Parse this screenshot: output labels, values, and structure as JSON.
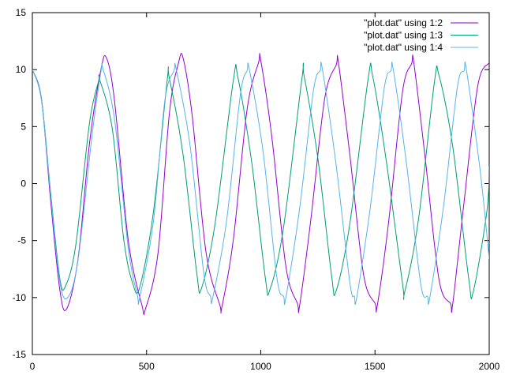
{
  "chart_data": {
    "type": "line",
    "title": "",
    "xlabel": "",
    "ylabel": "",
    "xlim": [
      0,
      2000
    ],
    "ylim": [
      -15,
      15
    ],
    "x_ticks": [
      0,
      500,
      1000,
      1500,
      2000
    ],
    "y_ticks": [
      -15,
      -10,
      -5,
      0,
      5,
      10,
      15
    ],
    "grid": false,
    "legend_position": "top-right",
    "series": [
      {
        "name": "\"plot.dat\" using 1:2",
        "color": "#9400d3",
        "x": [
          0,
          40,
          80,
          120,
          150,
          200,
          250,
          300,
          325,
          360,
          420,
          480,
          495,
          550,
          600,
          640,
          660,
          700,
          760,
          820,
          830,
          880,
          940,
          990,
          1000,
          1050,
          1110,
          1160,
          1170,
          1220,
          1280,
          1330,
          1340,
          1390,
          1450,
          1500,
          1510,
          1560,
          1620,
          1660,
          1670,
          1720,
          1780,
          1830,
          1840,
          1890,
          1950,
          2000
        ],
        "y": [
          10,
          7.4,
          -1.5,
          -9.3,
          -11,
          -6.6,
          3.5,
          10,
          11,
          7.2,
          -5,
          -10.7,
          -11,
          -6.1,
          6.2,
          10.6,
          11,
          5.9,
          -6,
          -10.6,
          -10.8,
          -4.9,
          6.5,
          10.6,
          10.8,
          3.8,
          -7.3,
          -10.5,
          -10.7,
          -3,
          7.5,
          10.4,
          10.6,
          2.5,
          -8,
          -10.5,
          -10.7,
          -3.3,
          8,
          10.5,
          10.6,
          2.2,
          -8.4,
          -10.5,
          -10.6,
          -1.6,
          8.6,
          10.6
        ]
      },
      {
        "name": "\"plot.dat\" using 1:3",
        "color": "#009e73",
        "x": [
          0,
          40,
          80,
          120,
          145,
          190,
          250,
          290,
          295,
          350,
          400,
          440,
          470,
          530,
          590,
          600,
          660,
          720,
          740,
          800,
          880,
          900,
          960,
          1020,
          1040,
          1100,
          1180,
          1190,
          1250,
          1310,
          1330,
          1390,
          1470,
          1490,
          1550,
          1620,
          1630,
          1690,
          1760,
          1780,
          1840,
          1910,
          1930,
          1990,
          2000
        ],
        "y": [
          10,
          7.4,
          -0.8,
          -8.3,
          -9,
          -5.4,
          5.3,
          9,
          9.1,
          4.8,
          -4.9,
          -8.8,
          -9.1,
          -2.5,
          9,
          9.2,
          2.5,
          -7.9,
          -9.2,
          -3.5,
          9.1,
          9.3,
          1.9,
          -8.3,
          -9.3,
          -3.8,
          9.2,
          9.4,
          2.2,
          -8.1,
          -9.4,
          -3.5,
          9.2,
          9.4,
          1.9,
          -8.7,
          -9.5,
          -3.2,
          8.9,
          9.5,
          3.3,
          -8.3,
          -9.5,
          -2.4,
          1.5
        ]
      },
      {
        "name": "\"plot.dat\" using 1:4",
        "color": "#56b4e9",
        "x": [
          0,
          40,
          80,
          120,
          155,
          200,
          260,
          300,
          310,
          360,
          420,
          460,
          470,
          530,
          580,
          620,
          630,
          690,
          750,
          780,
          790,
          850,
          910,
          940,
          950,
          1010,
          1070,
          1100,
          1110,
          1170,
          1230,
          1260,
          1270,
          1330,
          1390,
          1410,
          1420,
          1480,
          1540,
          1570,
          1580,
          1640,
          1700,
          1730,
          1740,
          1800,
          1860,
          1890,
          1900,
          1960,
          2000
        ],
        "y": [
          10,
          7.3,
          -1,
          -8.6,
          -10,
          -6.7,
          4,
          9.8,
          10,
          5.6,
          -5.7,
          -9.8,
          -10,
          -3.3,
          7.3,
          9.9,
          10,
          3.4,
          -7.8,
          -9.9,
          -10,
          -3.3,
          7.7,
          9.9,
          10,
          2.8,
          -8.2,
          -9.9,
          -10,
          -2.2,
          8.1,
          9.9,
          10,
          1.6,
          -8.7,
          -9.9,
          -10,
          -2,
          8.3,
          9.9,
          10,
          1.4,
          -8.8,
          -9.9,
          -10,
          -2,
          8.4,
          9.9,
          10,
          1.2,
          -6.6
        ]
      }
    ]
  }
}
